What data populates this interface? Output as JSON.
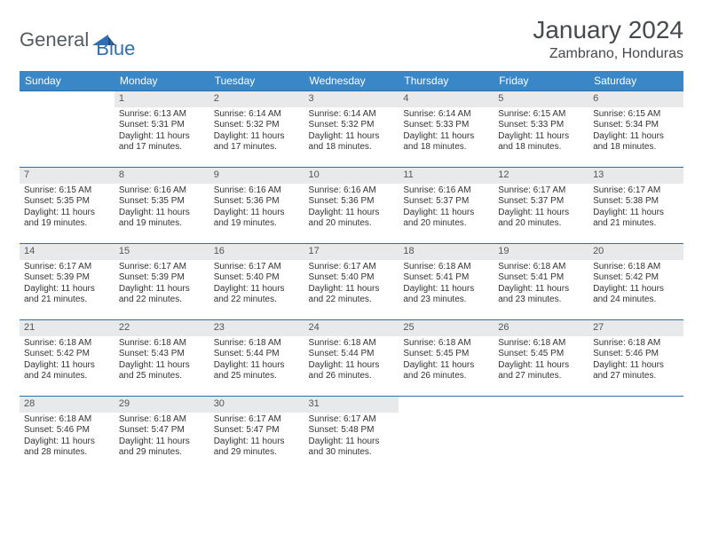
{
  "logo": {
    "part1": "General",
    "part2": "Blue"
  },
  "title": "January 2024",
  "location": "Zambrano, Honduras",
  "colors": {
    "header_bg": "#3a87c8",
    "header_text": "#ffffff",
    "daynum_bg": "#e7e9ea",
    "row_divider": "#2a6fa8",
    "logo_gray": "#555b60",
    "logo_blue": "#2f6fb0"
  },
  "weekdays": [
    "Sunday",
    "Monday",
    "Tuesday",
    "Wednesday",
    "Thursday",
    "Friday",
    "Saturday"
  ],
  "weeks": [
    [
      null,
      {
        "n": "1",
        "sr": "Sunrise: 6:13 AM",
        "ss": "Sunset: 5:31 PM",
        "d1": "Daylight: 11 hours",
        "d2": "and 17 minutes."
      },
      {
        "n": "2",
        "sr": "Sunrise: 6:14 AM",
        "ss": "Sunset: 5:32 PM",
        "d1": "Daylight: 11 hours",
        "d2": "and 17 minutes."
      },
      {
        "n": "3",
        "sr": "Sunrise: 6:14 AM",
        "ss": "Sunset: 5:32 PM",
        "d1": "Daylight: 11 hours",
        "d2": "and 18 minutes."
      },
      {
        "n": "4",
        "sr": "Sunrise: 6:14 AM",
        "ss": "Sunset: 5:33 PM",
        "d1": "Daylight: 11 hours",
        "d2": "and 18 minutes."
      },
      {
        "n": "5",
        "sr": "Sunrise: 6:15 AM",
        "ss": "Sunset: 5:33 PM",
        "d1": "Daylight: 11 hours",
        "d2": "and 18 minutes."
      },
      {
        "n": "6",
        "sr": "Sunrise: 6:15 AM",
        "ss": "Sunset: 5:34 PM",
        "d1": "Daylight: 11 hours",
        "d2": "and 18 minutes."
      }
    ],
    [
      {
        "n": "7",
        "sr": "Sunrise: 6:15 AM",
        "ss": "Sunset: 5:35 PM",
        "d1": "Daylight: 11 hours",
        "d2": "and 19 minutes."
      },
      {
        "n": "8",
        "sr": "Sunrise: 6:16 AM",
        "ss": "Sunset: 5:35 PM",
        "d1": "Daylight: 11 hours",
        "d2": "and 19 minutes."
      },
      {
        "n": "9",
        "sr": "Sunrise: 6:16 AM",
        "ss": "Sunset: 5:36 PM",
        "d1": "Daylight: 11 hours",
        "d2": "and 19 minutes."
      },
      {
        "n": "10",
        "sr": "Sunrise: 6:16 AM",
        "ss": "Sunset: 5:36 PM",
        "d1": "Daylight: 11 hours",
        "d2": "and 20 minutes."
      },
      {
        "n": "11",
        "sr": "Sunrise: 6:16 AM",
        "ss": "Sunset: 5:37 PM",
        "d1": "Daylight: 11 hours",
        "d2": "and 20 minutes."
      },
      {
        "n": "12",
        "sr": "Sunrise: 6:17 AM",
        "ss": "Sunset: 5:37 PM",
        "d1": "Daylight: 11 hours",
        "d2": "and 20 minutes."
      },
      {
        "n": "13",
        "sr": "Sunrise: 6:17 AM",
        "ss": "Sunset: 5:38 PM",
        "d1": "Daylight: 11 hours",
        "d2": "and 21 minutes."
      }
    ],
    [
      {
        "n": "14",
        "sr": "Sunrise: 6:17 AM",
        "ss": "Sunset: 5:39 PM",
        "d1": "Daylight: 11 hours",
        "d2": "and 21 minutes."
      },
      {
        "n": "15",
        "sr": "Sunrise: 6:17 AM",
        "ss": "Sunset: 5:39 PM",
        "d1": "Daylight: 11 hours",
        "d2": "and 22 minutes."
      },
      {
        "n": "16",
        "sr": "Sunrise: 6:17 AM",
        "ss": "Sunset: 5:40 PM",
        "d1": "Daylight: 11 hours",
        "d2": "and 22 minutes."
      },
      {
        "n": "17",
        "sr": "Sunrise: 6:17 AM",
        "ss": "Sunset: 5:40 PM",
        "d1": "Daylight: 11 hours",
        "d2": "and 22 minutes."
      },
      {
        "n": "18",
        "sr": "Sunrise: 6:18 AM",
        "ss": "Sunset: 5:41 PM",
        "d1": "Daylight: 11 hours",
        "d2": "and 23 minutes."
      },
      {
        "n": "19",
        "sr": "Sunrise: 6:18 AM",
        "ss": "Sunset: 5:41 PM",
        "d1": "Daylight: 11 hours",
        "d2": "and 23 minutes."
      },
      {
        "n": "20",
        "sr": "Sunrise: 6:18 AM",
        "ss": "Sunset: 5:42 PM",
        "d1": "Daylight: 11 hours",
        "d2": "and 24 minutes."
      }
    ],
    [
      {
        "n": "21",
        "sr": "Sunrise: 6:18 AM",
        "ss": "Sunset: 5:42 PM",
        "d1": "Daylight: 11 hours",
        "d2": "and 24 minutes."
      },
      {
        "n": "22",
        "sr": "Sunrise: 6:18 AM",
        "ss": "Sunset: 5:43 PM",
        "d1": "Daylight: 11 hours",
        "d2": "and 25 minutes."
      },
      {
        "n": "23",
        "sr": "Sunrise: 6:18 AM",
        "ss": "Sunset: 5:44 PM",
        "d1": "Daylight: 11 hours",
        "d2": "and 25 minutes."
      },
      {
        "n": "24",
        "sr": "Sunrise: 6:18 AM",
        "ss": "Sunset: 5:44 PM",
        "d1": "Daylight: 11 hours",
        "d2": "and 26 minutes."
      },
      {
        "n": "25",
        "sr": "Sunrise: 6:18 AM",
        "ss": "Sunset: 5:45 PM",
        "d1": "Daylight: 11 hours",
        "d2": "and 26 minutes."
      },
      {
        "n": "26",
        "sr": "Sunrise: 6:18 AM",
        "ss": "Sunset: 5:45 PM",
        "d1": "Daylight: 11 hours",
        "d2": "and 27 minutes."
      },
      {
        "n": "27",
        "sr": "Sunrise: 6:18 AM",
        "ss": "Sunset: 5:46 PM",
        "d1": "Daylight: 11 hours",
        "d2": "and 27 minutes."
      }
    ],
    [
      {
        "n": "28",
        "sr": "Sunrise: 6:18 AM",
        "ss": "Sunset: 5:46 PM",
        "d1": "Daylight: 11 hours",
        "d2": "and 28 minutes."
      },
      {
        "n": "29",
        "sr": "Sunrise: 6:18 AM",
        "ss": "Sunset: 5:47 PM",
        "d1": "Daylight: 11 hours",
        "d2": "and 29 minutes."
      },
      {
        "n": "30",
        "sr": "Sunrise: 6:17 AM",
        "ss": "Sunset: 5:47 PM",
        "d1": "Daylight: 11 hours",
        "d2": "and 29 minutes."
      },
      {
        "n": "31",
        "sr": "Sunrise: 6:17 AM",
        "ss": "Sunset: 5:48 PM",
        "d1": "Daylight: 11 hours",
        "d2": "and 30 minutes."
      },
      null,
      null,
      null
    ]
  ]
}
